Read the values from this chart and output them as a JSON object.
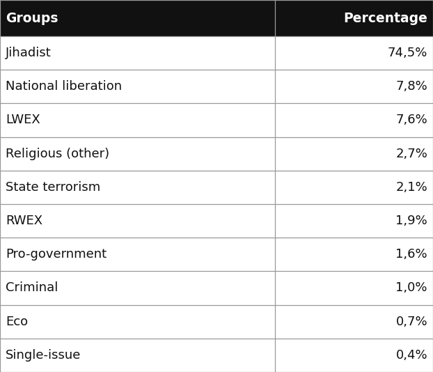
{
  "header": [
    "Groups",
    "Percentage"
  ],
  "rows": [
    [
      "Jihadist",
      "74,5%"
    ],
    [
      "National liberation",
      "7,8%"
    ],
    [
      "LWEX",
      "7,6%"
    ],
    [
      "Religious (other)",
      "2,7%"
    ],
    [
      "State terrorism",
      "2,1%"
    ],
    [
      "RWEX",
      "1,9%"
    ],
    [
      "Pro-government",
      "1,6%"
    ],
    [
      "Criminal",
      "1,0%"
    ],
    [
      "Eco",
      "0,7%"
    ],
    [
      "Single-issue",
      "0,4%"
    ]
  ],
  "header_bg": "#111111",
  "header_text_color": "#ffffff",
  "row_bg": "#ffffff",
  "cell_text_color": "#111111",
  "line_color": "#999999",
  "col_split": 0.635,
  "header_fontsize": 13.5,
  "cell_fontsize": 13.0,
  "fig_width": 6.22,
  "fig_height": 5.34,
  "dpi": 100
}
